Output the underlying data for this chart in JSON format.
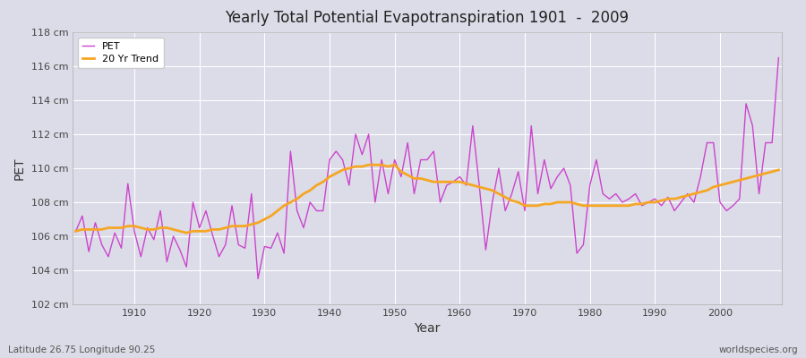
{
  "title": "Yearly Total Potential Evapotranspiration 1901  -  2009",
  "xlabel": "Year",
  "ylabel": "PET",
  "subtitle_left": "Latitude 26.75 Longitude 90.25",
  "subtitle_right": "worldspecies.org",
  "ylim": [
    102,
    118
  ],
  "ytick_labels": [
    "102 cm",
    "104 cm",
    "106 cm",
    "108 cm",
    "110 cm",
    "112 cm",
    "114 cm",
    "116 cm",
    "118 cm"
  ],
  "ytick_values": [
    102,
    104,
    106,
    108,
    110,
    112,
    114,
    116,
    118
  ],
  "pet_color": "#cc44cc",
  "trend_color": "#f5a623",
  "bg_color": "#dcdce8",
  "fig_color": "#dcdce8",
  "legend_labels": [
    "PET",
    "20 Yr Trend"
  ],
  "xticks": [
    1910,
    1920,
    1930,
    1940,
    1950,
    1960,
    1970,
    1980,
    1990,
    2000
  ],
  "years": [
    1901,
    1902,
    1903,
    1904,
    1905,
    1906,
    1907,
    1908,
    1909,
    1910,
    1911,
    1912,
    1913,
    1914,
    1915,
    1916,
    1917,
    1918,
    1919,
    1920,
    1921,
    1922,
    1923,
    1924,
    1925,
    1926,
    1927,
    1928,
    1929,
    1930,
    1931,
    1932,
    1933,
    1934,
    1935,
    1936,
    1937,
    1938,
    1939,
    1940,
    1941,
    1942,
    1943,
    1944,
    1945,
    1946,
    1947,
    1948,
    1949,
    1950,
    1951,
    1952,
    1953,
    1954,
    1955,
    1956,
    1957,
    1958,
    1959,
    1960,
    1961,
    1962,
    1963,
    1964,
    1965,
    1966,
    1967,
    1968,
    1969,
    1970,
    1971,
    1972,
    1973,
    1974,
    1975,
    1976,
    1977,
    1978,
    1979,
    1980,
    1981,
    1982,
    1983,
    1984,
    1985,
    1986,
    1987,
    1988,
    1989,
    1990,
    1991,
    1992,
    1993,
    1994,
    1995,
    1996,
    1997,
    1998,
    1999,
    2000,
    2001,
    2002,
    2003,
    2004,
    2005,
    2006,
    2007,
    2008,
    2009
  ],
  "pet_values": [
    106.3,
    107.2,
    105.1,
    106.8,
    105.5,
    104.8,
    106.2,
    105.3,
    109.1,
    106.3,
    104.8,
    106.5,
    105.8,
    107.5,
    104.5,
    106.0,
    105.2,
    104.2,
    108.0,
    106.5,
    107.5,
    106.1,
    104.8,
    105.5,
    107.8,
    105.5,
    105.3,
    108.5,
    103.5,
    105.4,
    105.3,
    106.2,
    105.0,
    111.0,
    107.5,
    106.5,
    108.0,
    107.5,
    107.5,
    110.5,
    111.0,
    110.5,
    109.0,
    112.0,
    110.8,
    112.0,
    108.0,
    110.5,
    108.5,
    110.5,
    109.5,
    111.5,
    108.5,
    110.5,
    110.5,
    111.0,
    108.0,
    109.0,
    109.2,
    109.5,
    109.0,
    112.5,
    109.0,
    105.2,
    108.0,
    110.0,
    107.5,
    108.5,
    109.8,
    107.5,
    112.5,
    108.5,
    110.5,
    108.8,
    109.5,
    110.0,
    109.0,
    105.0,
    105.5,
    109.0,
    110.5,
    108.5,
    108.2,
    108.5,
    108.0,
    108.2,
    108.5,
    107.8,
    108.0,
    108.2,
    107.8,
    108.3,
    107.5,
    108.0,
    108.5,
    108.0,
    109.5,
    111.5,
    111.5,
    108.0,
    107.5,
    107.8,
    108.2,
    113.8,
    112.5,
    108.5,
    111.5,
    111.5,
    116.5
  ],
  "trend_values": [
    106.3,
    106.4,
    106.4,
    106.4,
    106.4,
    106.5,
    106.5,
    106.5,
    106.6,
    106.6,
    106.5,
    106.4,
    106.4,
    106.5,
    106.5,
    106.4,
    106.3,
    106.2,
    106.3,
    106.3,
    106.3,
    106.4,
    106.4,
    106.5,
    106.6,
    106.6,
    106.6,
    106.7,
    106.8,
    107.0,
    107.2,
    107.5,
    107.8,
    108.0,
    108.2,
    108.5,
    108.7,
    109.0,
    109.2,
    109.5,
    109.7,
    109.9,
    110.0,
    110.1,
    110.1,
    110.2,
    110.2,
    110.2,
    110.1,
    110.2,
    109.8,
    109.6,
    109.4,
    109.4,
    109.3,
    109.2,
    109.2,
    109.2,
    109.2,
    109.2,
    109.1,
    109.0,
    108.9,
    108.8,
    108.7,
    108.5,
    108.3,
    108.1,
    108.0,
    107.8,
    107.8,
    107.8,
    107.9,
    107.9,
    108.0,
    108.0,
    108.0,
    107.9,
    107.8,
    107.8,
    107.8,
    107.8,
    107.8,
    107.8,
    107.8,
    107.8,
    107.9,
    107.9,
    108.0,
    108.0,
    108.1,
    108.2,
    108.2,
    108.3,
    108.4,
    108.5,
    108.6,
    108.7,
    108.9,
    109.0,
    109.1,
    109.2,
    109.3,
    109.4,
    109.5,
    109.6,
    109.7,
    109.8,
    109.9
  ]
}
